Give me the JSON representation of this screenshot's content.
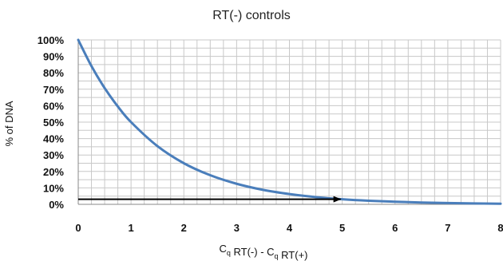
{
  "chart_data": {
    "type": "line",
    "title": "RT(-) controls",
    "ylabel": "% of DNA",
    "xlabel": {
      "parts": [
        {
          "text": "C",
          "sub": "q"
        },
        {
          "text": " RT(-) - C",
          "sub": "q"
        },
        {
          "text": " RT(+)",
          "sub": ""
        }
      ]
    },
    "xlim": [
      0,
      8
    ],
    "ylim": [
      0,
      100
    ],
    "x_ticks": [
      "0",
      "1",
      "2",
      "3",
      "4",
      "5",
      "6",
      "7",
      "8"
    ],
    "y_ticks": [
      "0%",
      "10%",
      "20%",
      "30%",
      "40%",
      "50%",
      "60%",
      "70%",
      "80%",
      "90%",
      "100%"
    ],
    "grid": true,
    "legend": "none",
    "series": [
      {
        "color": "#4a7ebb",
        "x": [
          0,
          0.25,
          0.5,
          0.75,
          1,
          1.5,
          2,
          2.5,
          3,
          3.5,
          4,
          4.5,
          5,
          5.5,
          6,
          6.5,
          7,
          7.5,
          8
        ],
        "y": [
          100,
          84.1,
          70.7,
          59.5,
          50,
          35.4,
          25,
          17.7,
          12.5,
          8.8,
          6.25,
          4.4,
          3.1,
          2.2,
          1.6,
          1.1,
          0.8,
          0.55,
          0.39
        ]
      }
    ],
    "annotations": [
      {
        "type": "arrow",
        "color": "#000000",
        "from": {
          "x": 0,
          "y": 3.1
        },
        "to": {
          "x": 5,
          "y": 3.1
        }
      }
    ]
  }
}
